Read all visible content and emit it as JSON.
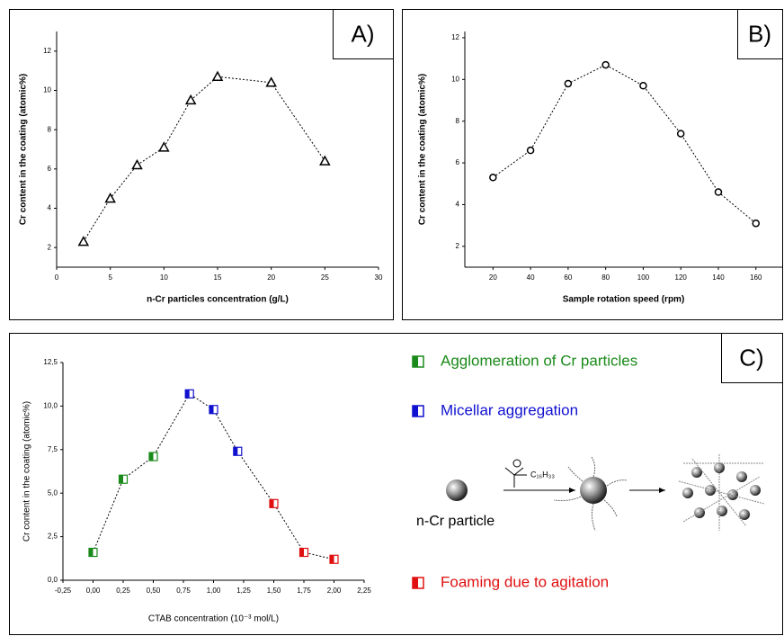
{
  "chart_data": [
    {
      "type": "line",
      "panel_label": "A)",
      "xlabel": "n-Cr particles concentration (g/L)",
      "ylabel": "Cr content in the coating (atomic%)",
      "x": [
        2.5,
        5,
        7.5,
        10,
        12.5,
        15,
        20,
        25
      ],
      "values": [
        2.3,
        4.5,
        6.2,
        7.1,
        9.5,
        10.7,
        10.4,
        6.4
      ],
      "color": "#000000",
      "marker": "triangle",
      "xlim": [
        0,
        30
      ],
      "ylim": [
        1,
        13
      ],
      "xticks": [
        0,
        5,
        10,
        15,
        20,
        25,
        30
      ],
      "yticks": [
        2,
        4,
        6,
        8,
        10,
        12
      ]
    },
    {
      "type": "line",
      "panel_label": "B)",
      "xlabel": "Sample rotation speed (rpm)",
      "ylabel": "Cr content in the coating (atomic%)",
      "x": [
        20,
        40,
        60,
        80,
        100,
        120,
        140,
        160
      ],
      "values": [
        5.3,
        6.6,
        9.8,
        10.7,
        9.7,
        7.4,
        4.6,
        3.1
      ],
      "color": "#000000",
      "marker": "circle",
      "xlim": [
        5,
        174
      ],
      "ylim": [
        1,
        12.3
      ],
      "xticks": [
        20,
        40,
        60,
        80,
        100,
        120,
        140,
        160
      ],
      "yticks": [
        2,
        4,
        6,
        8,
        10,
        12
      ]
    },
    {
      "type": "line",
      "panel_label": "C)",
      "xlabel": "CTAB concentration (10⁻³ mol/L)",
      "ylabel": "Cr content in the coating (atomic%)",
      "x": [
        0,
        0.25,
        0.5,
        0.8,
        1,
        1.2,
        1.5,
        1.75,
        2
      ],
      "values": [
        1.6,
        5.8,
        7.1,
        10.7,
        9.8,
        7.4,
        4.4,
        1.6,
        1.2
      ],
      "color": "#000000",
      "marker": "half-square",
      "point_colors": [
        "#1a8a1a",
        "#1a8a1a",
        "#1a8a1a",
        "#1010d0",
        "#1010d0",
        "#1010d0",
        "#e01010",
        "#e01010",
        "#e01010"
      ],
      "xlim": [
        -0.25,
        2.25
      ],
      "ylim": [
        0,
        12.5
      ],
      "xticks": [
        {
          "value": -0.25,
          "label": "-0,25"
        },
        {
          "value": 0,
          "label": "0,00"
        },
        {
          "value": 0.25,
          "label": "0,25"
        },
        {
          "value": 0.5,
          "label": "0,50"
        },
        {
          "value": 0.75,
          "label": "0,75"
        },
        {
          "value": 1,
          "label": "1,00"
        },
        {
          "value": 1.25,
          "label": "1,25"
        },
        {
          "value": 1.5,
          "label": "1,50"
        },
        {
          "value": 1.75,
          "label": "1,75"
        },
        {
          "value": 2,
          "label": "2,00"
        },
        {
          "value": 2.25,
          "label": "2,25"
        }
      ],
      "yticks": [
        {
          "value": 0,
          "label": "0,0"
        },
        {
          "value": 2.5,
          "label": "2,5"
        },
        {
          "value": 5,
          "label": "5,0"
        },
        {
          "value": 7.5,
          "label": "7,5"
        },
        {
          "value": 10,
          "label": "10,0"
        },
        {
          "value": 12.5,
          "label": "12,5"
        }
      ],
      "legend": [
        {
          "name": "Agglomeration of Cr particles",
          "color": "#1a8a1a"
        },
        {
          "name": "Micellar aggregation",
          "color": "#1010d0"
        },
        {
          "name": "Foaming due to agitation",
          "color": "#e01010"
        }
      ],
      "scheme_label": "n-Cr particle",
      "chain_label": "C₁₆H₃₃"
    }
  ]
}
